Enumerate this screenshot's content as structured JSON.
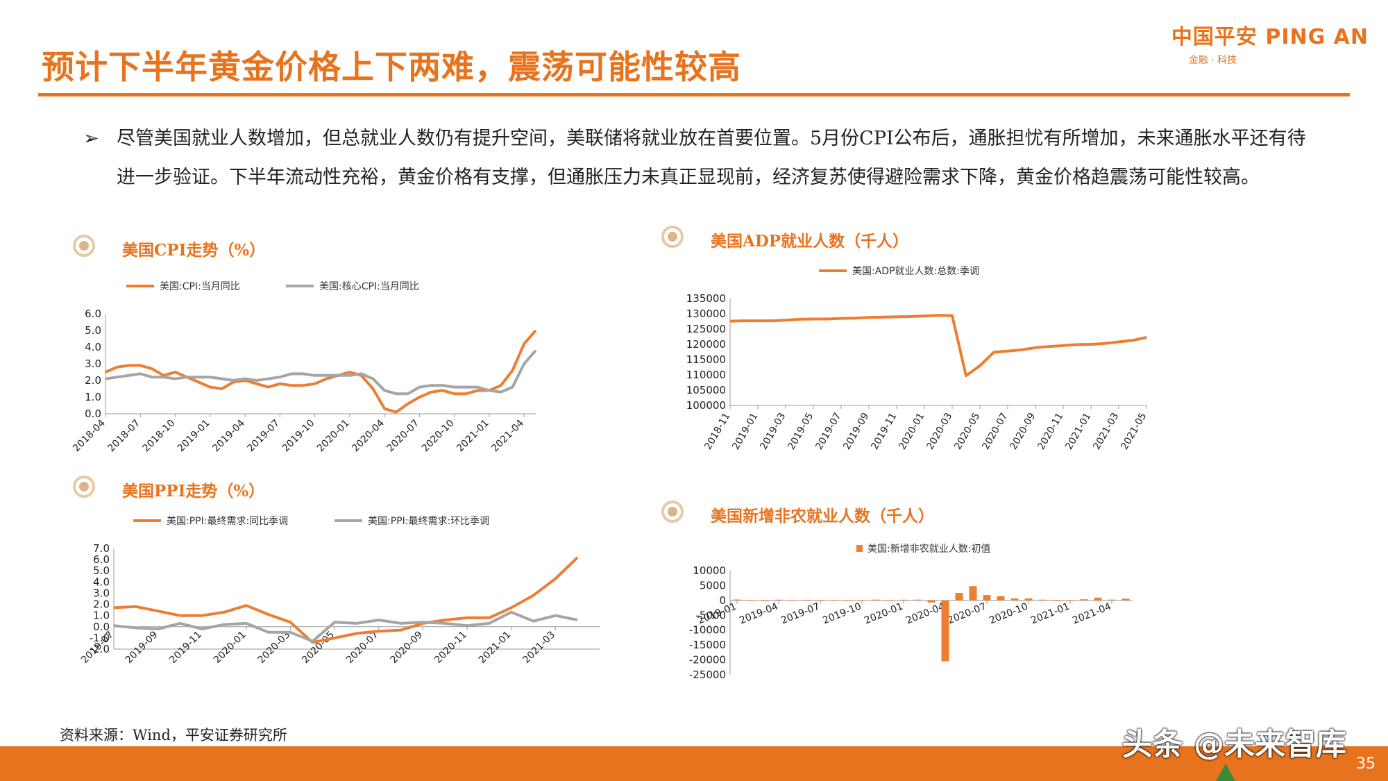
{
  "header": {
    "title": "预计下半年黄金价格上下两难，震荡可能性较高",
    "logo_main": "中国平安 PING AN",
    "logo_sub": "金融 · 科技"
  },
  "bullet": {
    "arrow": "➢",
    "text": "尽管美国就业人数增加，但总就业人数仍有提升空间，美联储将就业放在首要位置。5月份CPI公布后，通胀担忧有所增加，未来通胀水平还有待进一步验证。下半年流动性充裕，黄金价格有支撑，但通胀压力未真正显现前，经济复苏使得避险需求下降，黄金价格趋震荡可能性较高。"
  },
  "sections": {
    "cpi": "美国CPI走势（%）",
    "ppi": "美国PPI走势（%）",
    "adp": "美国ADP就业人数（千人）",
    "nfp": "美国新增非农就业人数（千人）"
  },
  "colors": {
    "orange": "#ed7d31",
    "gray": "#a5a5a5",
    "accent": "#e8731e"
  },
  "chart_data": [
    {
      "id": "cpi",
      "type": "line",
      "x": [
        "2018-04",
        "2018-05",
        "2018-06",
        "2018-07",
        "2018-08",
        "2018-09",
        "2018-10",
        "2018-11",
        "2018-12",
        "2019-01",
        "2019-02",
        "2019-03",
        "2019-04",
        "2019-05",
        "2019-06",
        "2019-07",
        "2019-08",
        "2019-09",
        "2019-10",
        "2019-11",
        "2019-12",
        "2020-01",
        "2020-02",
        "2020-03",
        "2020-04",
        "2020-05",
        "2020-06",
        "2020-07",
        "2020-08",
        "2020-09",
        "2020-10",
        "2020-11",
        "2020-12",
        "2021-01",
        "2021-02",
        "2021-03",
        "2021-04",
        "2021-05"
      ],
      "xticks": [
        "2018-04",
        "2018-07",
        "2018-10",
        "2019-01",
        "2019-04",
        "2019-07",
        "2019-10",
        "2020-01",
        "2020-04",
        "2020-07",
        "2020-10",
        "2021-01",
        "2021-04"
      ],
      "ylim": [
        0,
        6
      ],
      "yticks": [
        "0.0",
        "1.0",
        "2.0",
        "3.0",
        "4.0",
        "5.0",
        "6.0"
      ],
      "series": [
        {
          "name": "美国:CPI:当月同比",
          "values": [
            2.5,
            2.8,
            2.9,
            2.9,
            2.7,
            2.3,
            2.5,
            2.2,
            1.9,
            1.6,
            1.5,
            1.9,
            2.0,
            1.8,
            1.6,
            1.8,
            1.7,
            1.7,
            1.8,
            2.1,
            2.3,
            2.5,
            2.3,
            1.5,
            0.3,
            0.1,
            0.6,
            1.0,
            1.3,
            1.4,
            1.2,
            1.2,
            1.4,
            1.4,
            1.7,
            2.6,
            4.2,
            5.0
          ]
        },
        {
          "name": "美国:核心CPI:当月同比",
          "values": [
            2.1,
            2.2,
            2.3,
            2.4,
            2.2,
            2.2,
            2.1,
            2.2,
            2.2,
            2.2,
            2.1,
            2.0,
            2.1,
            2.0,
            2.1,
            2.2,
            2.4,
            2.4,
            2.3,
            2.3,
            2.3,
            2.3,
            2.4,
            2.1,
            1.4,
            1.2,
            1.2,
            1.6,
            1.7,
            1.7,
            1.6,
            1.6,
            1.6,
            1.4,
            1.3,
            1.6,
            3.0,
            3.8
          ]
        }
      ]
    },
    {
      "id": "ppi",
      "type": "line",
      "x": [
        "2019-07",
        "2019-08",
        "2019-09",
        "2019-10",
        "2019-11",
        "2019-12",
        "2020-01",
        "2020-02",
        "2020-03",
        "2020-04",
        "2020-05",
        "2020-06",
        "2020-07",
        "2020-08",
        "2020-09",
        "2020-10",
        "2020-11",
        "2020-12",
        "2021-01",
        "2021-02",
        "2021-03",
        "2021-04",
        "2021-05"
      ],
      "xticks": [
        "2019-07",
        "2019-09",
        "2019-11",
        "2020-01",
        "2020-03",
        "2020-05",
        "2020-07",
        "2020-09",
        "2020-11",
        "2021-01",
        "2021-03"
      ],
      "ylim": [
        -2,
        7
      ],
      "yticks": [
        "-2.0",
        "-1.0",
        "0.0",
        "1.0",
        "2.0",
        "3.0",
        "4.0",
        "5.0",
        "6.0",
        "7.0"
      ],
      "series": [
        {
          "name": "美国:PPI:最终需求:同比季调",
          "values": [
            1.7,
            1.8,
            1.4,
            1.0,
            1.0,
            1.3,
            1.9,
            1.1,
            0.4,
            -1.4,
            -1.0,
            -0.6,
            -0.4,
            -0.3,
            0.3,
            0.6,
            0.8,
            0.8,
            1.7,
            2.8,
            4.3,
            6.2,
            null
          ]
        },
        {
          "name": "美国:PPI:最终需求:环比季调",
          "values": [
            0.1,
            -0.1,
            -0.2,
            0.3,
            -0.2,
            0.2,
            0.3,
            -0.5,
            -0.5,
            -1.3,
            0.4,
            0.3,
            0.6,
            0.3,
            0.4,
            0.3,
            0.1,
            0.3,
            1.3,
            0.5,
            1.0,
            0.6,
            null
          ]
        }
      ]
    },
    {
      "id": "adp",
      "type": "line",
      "x": [
        "2018-11",
        "2018-12",
        "2019-01",
        "2019-02",
        "2019-03",
        "2019-04",
        "2019-05",
        "2019-06",
        "2019-07",
        "2019-08",
        "2019-09",
        "2019-10",
        "2019-11",
        "2019-12",
        "2020-01",
        "2020-02",
        "2020-03",
        "2020-04",
        "2020-05",
        "2020-06",
        "2020-07",
        "2020-08",
        "2020-09",
        "2020-10",
        "2020-11",
        "2020-12",
        "2021-01",
        "2021-02",
        "2021-03",
        "2021-04",
        "2021-05"
      ],
      "xticks": [
        "2018-11",
        "2019-01",
        "2019-03",
        "2019-05",
        "2019-07",
        "2019-09",
        "2019-11",
        "2020-01",
        "2020-03",
        "2020-05",
        "2020-07",
        "2020-09",
        "2020-11",
        "2021-01",
        "2021-03",
        "2021-05"
      ],
      "ylim": [
        100000,
        135000
      ],
      "yticks": [
        "100000",
        "105000",
        "110000",
        "115000",
        "120000",
        "125000",
        "130000",
        "135000"
      ],
      "series": [
        {
          "name": "美国:ADP就业人数:总数:季调",
          "values": [
            127600,
            127700,
            127700,
            127700,
            127900,
            128200,
            128300,
            128300,
            128500,
            128600,
            128800,
            128900,
            129000,
            129100,
            129300,
            129500,
            129400,
            109700,
            113000,
            117400,
            117800,
            118200,
            118900,
            119300,
            119600,
            119900,
            120000,
            120300,
            120800,
            121300,
            122300
          ]
        }
      ]
    },
    {
      "id": "nfp",
      "type": "bar",
      "x": [
        "2019-01",
        "2019-02",
        "2019-03",
        "2019-04",
        "2019-05",
        "2019-06",
        "2019-07",
        "2019-08",
        "2019-09",
        "2019-10",
        "2019-11",
        "2019-12",
        "2020-01",
        "2020-02",
        "2020-03",
        "2020-04",
        "2020-05",
        "2020-06",
        "2020-07",
        "2020-08",
        "2020-09",
        "2020-10",
        "2020-11",
        "2020-12",
        "2021-01",
        "2021-02",
        "2021-03",
        "2021-04",
        "2021-05"
      ],
      "xticks": [
        "2019-01",
        "2019-04",
        "2019-07",
        "2019-10",
        "2020-01",
        "2020-04",
        "2020-07",
        "2020-10",
        "2021-01",
        "2021-04"
      ],
      "ylim": [
        -25000,
        10000
      ],
      "yticks": [
        "-25000",
        "-20000",
        "-15000",
        "-10000",
        "-5000",
        "0",
        "5000",
        "10000"
      ],
      "series": [
        {
          "name": "美国:新增非农就业人数:初值",
          "values": [
            300,
            100,
            200,
            250,
            100,
            200,
            160,
            130,
            140,
            130,
            260,
            150,
            230,
            270,
            -700,
            -20500,
            2500,
            4800,
            1800,
            1400,
            650,
            640,
            250,
            -140,
            50,
            380,
            920,
            270,
            560
          ]
        }
      ]
    }
  ]
}
